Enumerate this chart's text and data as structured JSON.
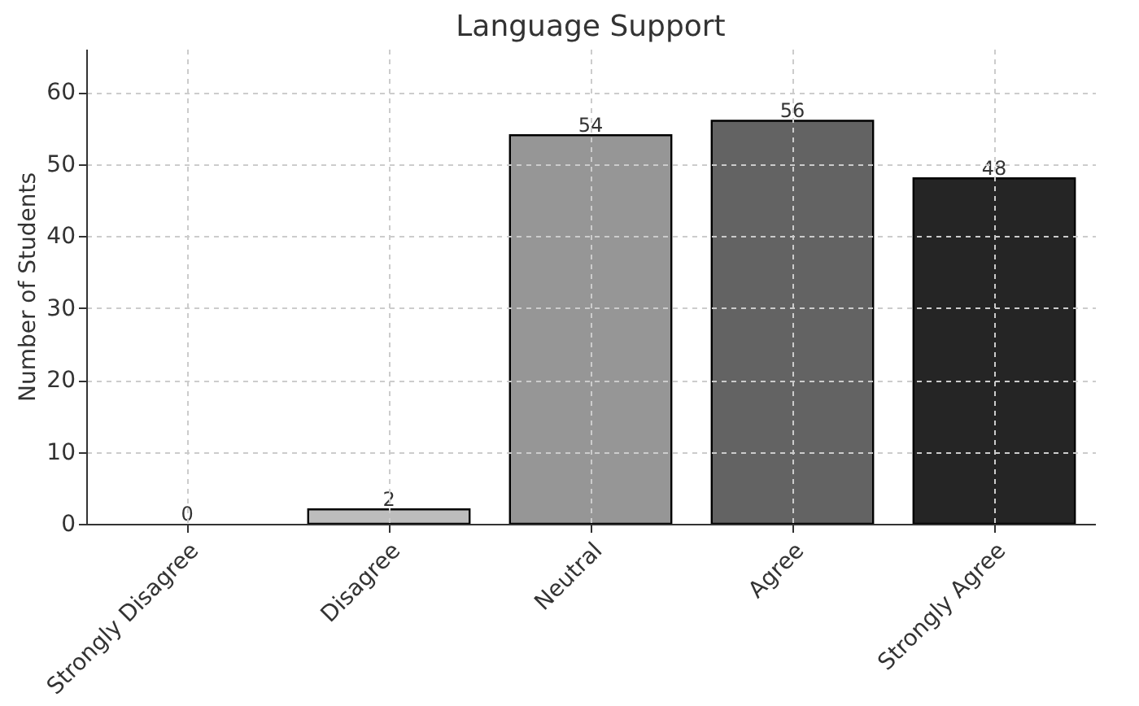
{
  "chart_data": {
    "type": "bar",
    "title": "Language Support",
    "ylabel": "Number of Students",
    "categories": [
      "Strongly Disagree",
      "Disagree",
      "Neutral",
      "Agree",
      "Strongly Agree"
    ],
    "values": [
      0,
      2,
      54,
      56,
      48
    ],
    "colors": [
      "#d9d9d9",
      "#bdbdbd",
      "#969696",
      "#636363",
      "#252525"
    ],
    "ylim": [
      0,
      66
    ],
    "yticks": [
      0,
      10,
      20,
      30,
      40,
      50,
      60
    ],
    "grid": true,
    "data_labels": true
  }
}
